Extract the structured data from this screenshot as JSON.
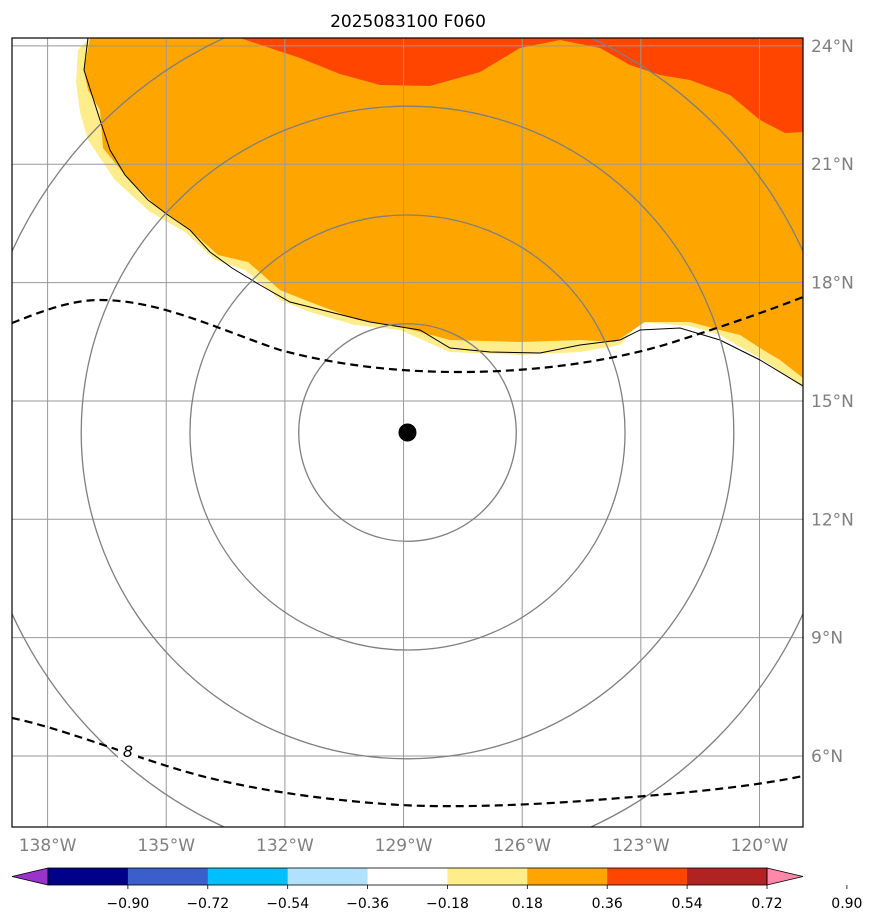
{
  "title": "2025083100 F060",
  "map": {
    "lat_range": [
      4.2,
      24.2
    ],
    "lon_range": [
      -138.9,
      -118.9
    ],
    "lon_ticks": [
      {
        "value": -138,
        "label": "138°W"
      },
      {
        "value": -135,
        "label": "135°W"
      },
      {
        "value": -132,
        "label": "132°W"
      },
      {
        "value": -129,
        "label": "129°W"
      },
      {
        "value": -126,
        "label": "126°W"
      },
      {
        "value": -123,
        "label": "123°W"
      },
      {
        "value": -120,
        "label": "120°W"
      }
    ],
    "lat_ticks": [
      {
        "value": 24,
        "label": "24°N"
      },
      {
        "value": 21,
        "label": "21°N"
      },
      {
        "value": 18,
        "label": "18°N"
      },
      {
        "value": 15,
        "label": "15°N"
      },
      {
        "value": 12,
        "label": "12°N"
      },
      {
        "value": 9,
        "label": "9°N"
      },
      {
        "value": 6,
        "label": "6°N"
      }
    ],
    "center": {
      "lat": 14.2,
      "lon": -128.9
    },
    "range_rings_deg": [
      2.75,
      5.5,
      8.25,
      11.0
    ]
  },
  "colorbar": {
    "ticks": [
      "−0.90",
      "−0.72",
      "−0.54",
      "−0.36",
      "−0.18",
      "0.18",
      "0.36",
      "0.54",
      "0.72",
      "0.90"
    ],
    "colors": [
      "#9933cc",
      "#00008b",
      "#3a5fcd",
      "#00bfff",
      "#b0e2ff",
      "#ffffff",
      "#ffec8b",
      "#ffa500",
      "#ff4500",
      "#b22222",
      "#ff88aa"
    ]
  },
  "contour_label": "8",
  "colors": {
    "light_yellow": "#ffec8b",
    "orange": "#ffa500",
    "red_orange": "#ff4500",
    "grid": "#999999",
    "ring": "#7f7f7f"
  }
}
